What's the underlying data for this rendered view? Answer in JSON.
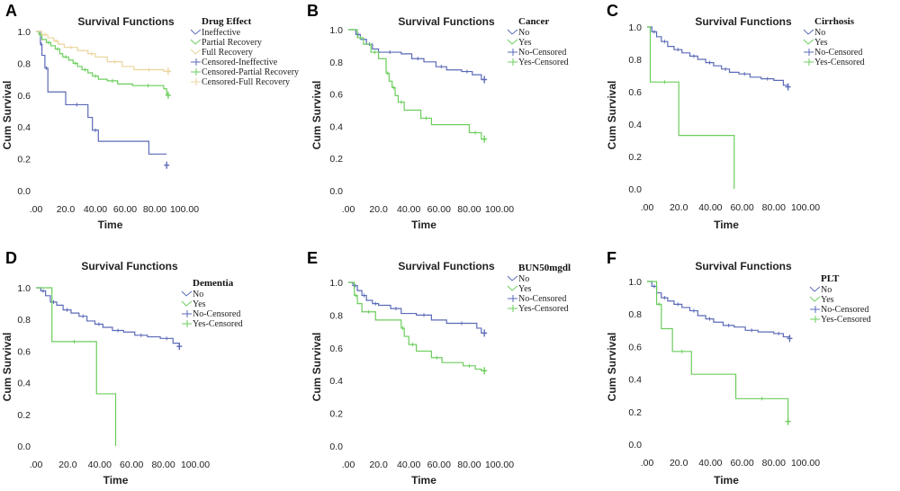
{
  "figure": {
    "axis_tick_format_note": "",
    "ylabel": "Cum Survival",
    "xlabel": "Time"
  },
  "colors": {
    "blue": "#5b6ab8",
    "green": "#6ccd5d",
    "tan": "#ebd49b"
  },
  "chart_data": [
    {
      "panel": "A",
      "type": "line",
      "title": "Survival Functions",
      "xlabel": "Time",
      "ylabel": "Cum Survival",
      "xlim": [
        0,
        100
      ],
      "ylim": [
        0,
        1
      ],
      "x_ticks": [
        ".00",
        "20.0",
        "40.00",
        "60.00",
        "80.00",
        "100.00"
      ],
      "y_ticks": [
        "0.0",
        "0.2",
        "0.4",
        "0.6",
        "0.8",
        "1.0"
      ],
      "legend_title": "Drug Effect",
      "legend_labels": [
        "Ineffective",
        "Partial Recovery",
        "Full Recovery",
        "Censored-Ineffective",
        "Censored-Partial Recovery",
        "Censored-Full Recovery"
      ],
      "legend_colors": [
        "blue",
        "green",
        "tan",
        "blue",
        "green",
        "tan"
      ],
      "series": [
        {
          "name": "Ineffective",
          "color": "blue",
          "steps": [
            [
              0,
              1.0
            ],
            [
              3,
              0.92
            ],
            [
              4,
              0.85
            ],
            [
              6,
              0.77
            ],
            [
              8,
              0.62
            ],
            [
              20,
              0.54
            ],
            [
              35,
              0.46
            ],
            [
              38,
              0.38
            ],
            [
              42,
              0.31
            ],
            [
              76,
              0.23
            ]
          ],
          "end": 88,
          "censor": [
            [
              88,
              0.16
            ]
          ]
        },
        {
          "name": "Partial Recovery",
          "color": "green",
          "steps": [
            [
              0,
              1.0
            ],
            [
              2,
              0.98
            ],
            [
              4,
              0.95
            ],
            [
              7,
              0.93
            ],
            [
              10,
              0.91
            ],
            [
              13,
              0.89
            ],
            [
              16,
              0.86
            ],
            [
              18,
              0.84
            ],
            [
              22,
              0.82
            ],
            [
              25,
              0.8
            ],
            [
              28,
              0.78
            ],
            [
              31,
              0.76
            ],
            [
              35,
              0.74
            ],
            [
              38,
              0.72
            ],
            [
              42,
              0.7
            ],
            [
              48,
              0.69
            ],
            [
              55,
              0.67
            ],
            [
              65,
              0.66
            ],
            [
              86,
              0.64
            ],
            [
              88,
              0.6
            ]
          ],
          "end": 89,
          "censor": [
            [
              89,
              0.6
            ]
          ]
        },
        {
          "name": "Full Recovery",
          "color": "tan",
          "steps": [
            [
              0,
              1.0
            ],
            [
              4,
              0.98
            ],
            [
              8,
              0.96
            ],
            [
              12,
              0.94
            ],
            [
              15,
              0.92
            ],
            [
              19,
              0.9
            ],
            [
              28,
              0.88
            ],
            [
              35,
              0.86
            ],
            [
              40,
              0.84
            ],
            [
              48,
              0.81
            ],
            [
              58,
              0.78
            ],
            [
              66,
              0.76
            ],
            [
              86,
              0.75
            ]
          ],
          "end": 89,
          "censor": [
            [
              89,
              0.75
            ]
          ]
        }
      ]
    },
    {
      "panel": "B",
      "type": "line",
      "title": "Survival Functions",
      "xlabel": "Time",
      "ylabel": "Cum Survival",
      "xlim": [
        0,
        100
      ],
      "ylim": [
        0,
        1
      ],
      "x_ticks": [
        ".00",
        "20.0",
        "40.00",
        "60.00",
        "80.00",
        "100.00"
      ],
      "y_ticks": [
        "0.0",
        "0.2",
        "0.4",
        "0.6",
        "0.8",
        "1.0"
      ],
      "legend_title": "Cancer",
      "legend_labels": [
        "No",
        "Yes",
        "No-Censored",
        "Yes-Censored"
      ],
      "legend_colors": [
        "blue",
        "green",
        "blue",
        "green"
      ],
      "series": [
        {
          "name": "No",
          "color": "blue",
          "steps": [
            [
              0,
              1.0
            ],
            [
              5,
              0.97
            ],
            [
              8,
              0.94
            ],
            [
              12,
              0.91
            ],
            [
              16,
              0.88
            ],
            [
              20,
              0.86
            ],
            [
              35,
              0.85
            ],
            [
              42,
              0.82
            ],
            [
              50,
              0.8
            ],
            [
              58,
              0.77
            ],
            [
              65,
              0.75
            ],
            [
              75,
              0.74
            ],
            [
              82,
              0.72
            ],
            [
              88,
              0.69
            ]
          ],
          "end": 90,
          "censor": [
            [
              90,
              0.69
            ]
          ]
        },
        {
          "name": "Yes",
          "color": "green",
          "steps": [
            [
              0,
              1.0
            ],
            [
              6,
              0.95
            ],
            [
              10,
              0.91
            ],
            [
              15,
              0.86
            ],
            [
              20,
              0.82
            ],
            [
              25,
              0.73
            ],
            [
              27,
              0.68
            ],
            [
              29,
              0.64
            ],
            [
              31,
              0.59
            ],
            [
              33,
              0.55
            ],
            [
              37,
              0.5
            ],
            [
              48,
              0.45
            ],
            [
              55,
              0.41
            ],
            [
              80,
              0.36
            ],
            [
              88,
              0.32
            ]
          ],
          "end": 90,
          "censor": [
            [
              90,
              0.32
            ]
          ]
        }
      ]
    },
    {
      "panel": "C",
      "type": "line",
      "title": "Survival Functions",
      "xlabel": "Time",
      "ylabel": "Cum Survival",
      "xlim": [
        0,
        100
      ],
      "ylim": [
        0,
        1
      ],
      "x_ticks": [
        ".00",
        "20.0",
        "40.00",
        "60.00",
        "80.00",
        "100.00"
      ],
      "y_ticks": [
        "0.0",
        "0.2",
        "0.4",
        "0.6",
        "0.8",
        "1.0"
      ],
      "legend_title": "Cirrhosis",
      "legend_labels": [
        "No",
        "Yes",
        "No-Censored",
        "Yes-Censored"
      ],
      "legend_colors": [
        "blue",
        "green",
        "blue",
        "green"
      ],
      "series": [
        {
          "name": "No",
          "color": "blue",
          "steps": [
            [
              0,
              1.0
            ],
            [
              3,
              0.97
            ],
            [
              6,
              0.94
            ],
            [
              9,
              0.91
            ],
            [
              13,
              0.88
            ],
            [
              17,
              0.86
            ],
            [
              22,
              0.84
            ],
            [
              27,
              0.82
            ],
            [
              32,
              0.8
            ],
            [
              37,
              0.78
            ],
            [
              42,
              0.76
            ],
            [
              47,
              0.74
            ],
            [
              52,
              0.72
            ],
            [
              58,
              0.71
            ],
            [
              65,
              0.69
            ],
            [
              72,
              0.68
            ],
            [
              80,
              0.67
            ],
            [
              86,
              0.64
            ]
          ],
          "end": 89,
          "censor": [
            [
              89,
              0.63
            ]
          ]
        },
        {
          "name": "Yes",
          "color": "green",
          "steps": [
            [
              0,
              1.0
            ],
            [
              2,
              0.66
            ],
            [
              20,
              0.33
            ],
            [
              55,
              0.0
            ]
          ],
          "end": 55,
          "censor": []
        }
      ]
    },
    {
      "panel": "D",
      "type": "line",
      "title": "Survival Functions",
      "xlabel": "Time",
      "ylabel": "Cum Survival",
      "xlim": [
        0,
        100
      ],
      "ylim": [
        0,
        1
      ],
      "x_ticks": [
        ".00",
        "20.0",
        "40.00",
        "60.00",
        "80.00",
        "100.00"
      ],
      "y_ticks": [
        "0.0",
        "0.2",
        "0.4",
        "0.6",
        "0.8",
        "1.0"
      ],
      "legend_title": "Dementia",
      "legend_labels": [
        "No",
        "Yes",
        "No-Censored",
        "Yes-Censored"
      ],
      "legend_colors": [
        "blue",
        "green",
        "blue",
        "green"
      ],
      "series": [
        {
          "name": "No",
          "color": "blue",
          "steps": [
            [
              0,
              1.0
            ],
            [
              3,
              0.98
            ],
            [
              6,
              0.95
            ],
            [
              9,
              0.91
            ],
            [
              13,
              0.89
            ],
            [
              17,
              0.86
            ],
            [
              22,
              0.84
            ],
            [
              27,
              0.82
            ],
            [
              32,
              0.79
            ],
            [
              37,
              0.77
            ],
            [
              42,
              0.75
            ],
            [
              48,
              0.73
            ],
            [
              55,
              0.72
            ],
            [
              62,
              0.7
            ],
            [
              70,
              0.69
            ],
            [
              78,
              0.68
            ],
            [
              86,
              0.65
            ]
          ],
          "end": 90,
          "censor": [
            [
              90,
              0.63
            ]
          ]
        },
        {
          "name": "Yes",
          "color": "green",
          "steps": [
            [
              0,
              1.0
            ],
            [
              10,
              0.66
            ],
            [
              38,
              0.33
            ],
            [
              50,
              0.0
            ]
          ],
          "end": 50,
          "censor": []
        }
      ]
    },
    {
      "panel": "E",
      "type": "line",
      "title": "Survival Functions",
      "xlabel": "Time",
      "ylabel": "Cum Survival",
      "xlim": [
        0,
        100
      ],
      "ylim": [
        0,
        1
      ],
      "x_ticks": [
        ".00",
        "20.0",
        "40.00",
        "60.00",
        "80.00",
        "100.00"
      ],
      "y_ticks": [
        "0.0",
        "0.2",
        "0.4",
        "0.6",
        "0.8",
        "1.0"
      ],
      "legend_title": "BUN50mgdl",
      "legend_labels": [
        "No",
        "Yes",
        "No-Censored",
        "Yes-Censored"
      ],
      "legend_colors": [
        "blue",
        "green",
        "blue",
        "green"
      ],
      "series": [
        {
          "name": "No",
          "color": "blue",
          "steps": [
            [
              0,
              1.0
            ],
            [
              3,
              0.98
            ],
            [
              6,
              0.95
            ],
            [
              9,
              0.92
            ],
            [
              12,
              0.89
            ],
            [
              16,
              0.87
            ],
            [
              20,
              0.86
            ],
            [
              28,
              0.84
            ],
            [
              35,
              0.81
            ],
            [
              45,
              0.8
            ],
            [
              55,
              0.77
            ],
            [
              65,
              0.75
            ],
            [
              85,
              0.72
            ],
            [
              88,
              0.69
            ]
          ],
          "end": 90,
          "censor": [
            [
              90,
              0.69
            ]
          ]
        },
        {
          "name": "Yes",
          "color": "green",
          "steps": [
            [
              0,
              1.0
            ],
            [
              4,
              0.92
            ],
            [
              6,
              0.87
            ],
            [
              9,
              0.82
            ],
            [
              18,
              0.77
            ],
            [
              35,
              0.72
            ],
            [
              37,
              0.67
            ],
            [
              40,
              0.62
            ],
            [
              45,
              0.58
            ],
            [
              55,
              0.54
            ],
            [
              62,
              0.51
            ],
            [
              76,
              0.49
            ],
            [
              84,
              0.47
            ],
            [
              88,
              0.46
            ]
          ],
          "end": 90,
          "censor": [
            [
              90,
              0.46
            ]
          ]
        }
      ]
    },
    {
      "panel": "F",
      "type": "line",
      "title": "Survival Functions",
      "xlabel": "Time",
      "ylabel": "Cum Survival",
      "xlim": [
        0,
        100
      ],
      "ylim": [
        0,
        1
      ],
      "x_ticks": [
        ".00",
        "20.0",
        "40.00",
        "60.00",
        "80.00",
        "100.00"
      ],
      "y_ticks": [
        "0.0",
        "0.2",
        "0.4",
        "0.6",
        "0.8",
        "1.0"
      ],
      "legend_title": "PLT",
      "legend_labels": [
        "No",
        "Yes",
        "No-Censored",
        "Yes-Censored"
      ],
      "legend_colors": [
        "blue",
        "green",
        "blue",
        "green"
      ],
      "series": [
        {
          "name": "No",
          "color": "blue",
          "steps": [
            [
              0,
              1.0
            ],
            [
              3,
              0.97
            ],
            [
              6,
              0.93
            ],
            [
              9,
              0.9
            ],
            [
              13,
              0.88
            ],
            [
              17,
              0.86
            ],
            [
              22,
              0.84
            ],
            [
              27,
              0.82
            ],
            [
              32,
              0.79
            ],
            [
              37,
              0.77
            ],
            [
              42,
              0.75
            ],
            [
              48,
              0.73
            ],
            [
              55,
              0.72
            ],
            [
              62,
              0.7
            ],
            [
              70,
              0.69
            ],
            [
              80,
              0.68
            ],
            [
              86,
              0.66
            ]
          ],
          "end": 90,
          "censor": [
            [
              90,
              0.65
            ]
          ]
        },
        {
          "name": "Yes",
          "color": "green",
          "steps": [
            [
              0,
              1.0
            ],
            [
              6,
              0.86
            ],
            [
              9,
              0.71
            ],
            [
              16,
              0.57
            ],
            [
              28,
              0.43
            ],
            [
              56,
              0.28
            ],
            [
              89,
              0.14
            ]
          ],
          "end": 89,
          "censor": [
            [
              89,
              0.14
            ]
          ]
        }
      ]
    }
  ]
}
